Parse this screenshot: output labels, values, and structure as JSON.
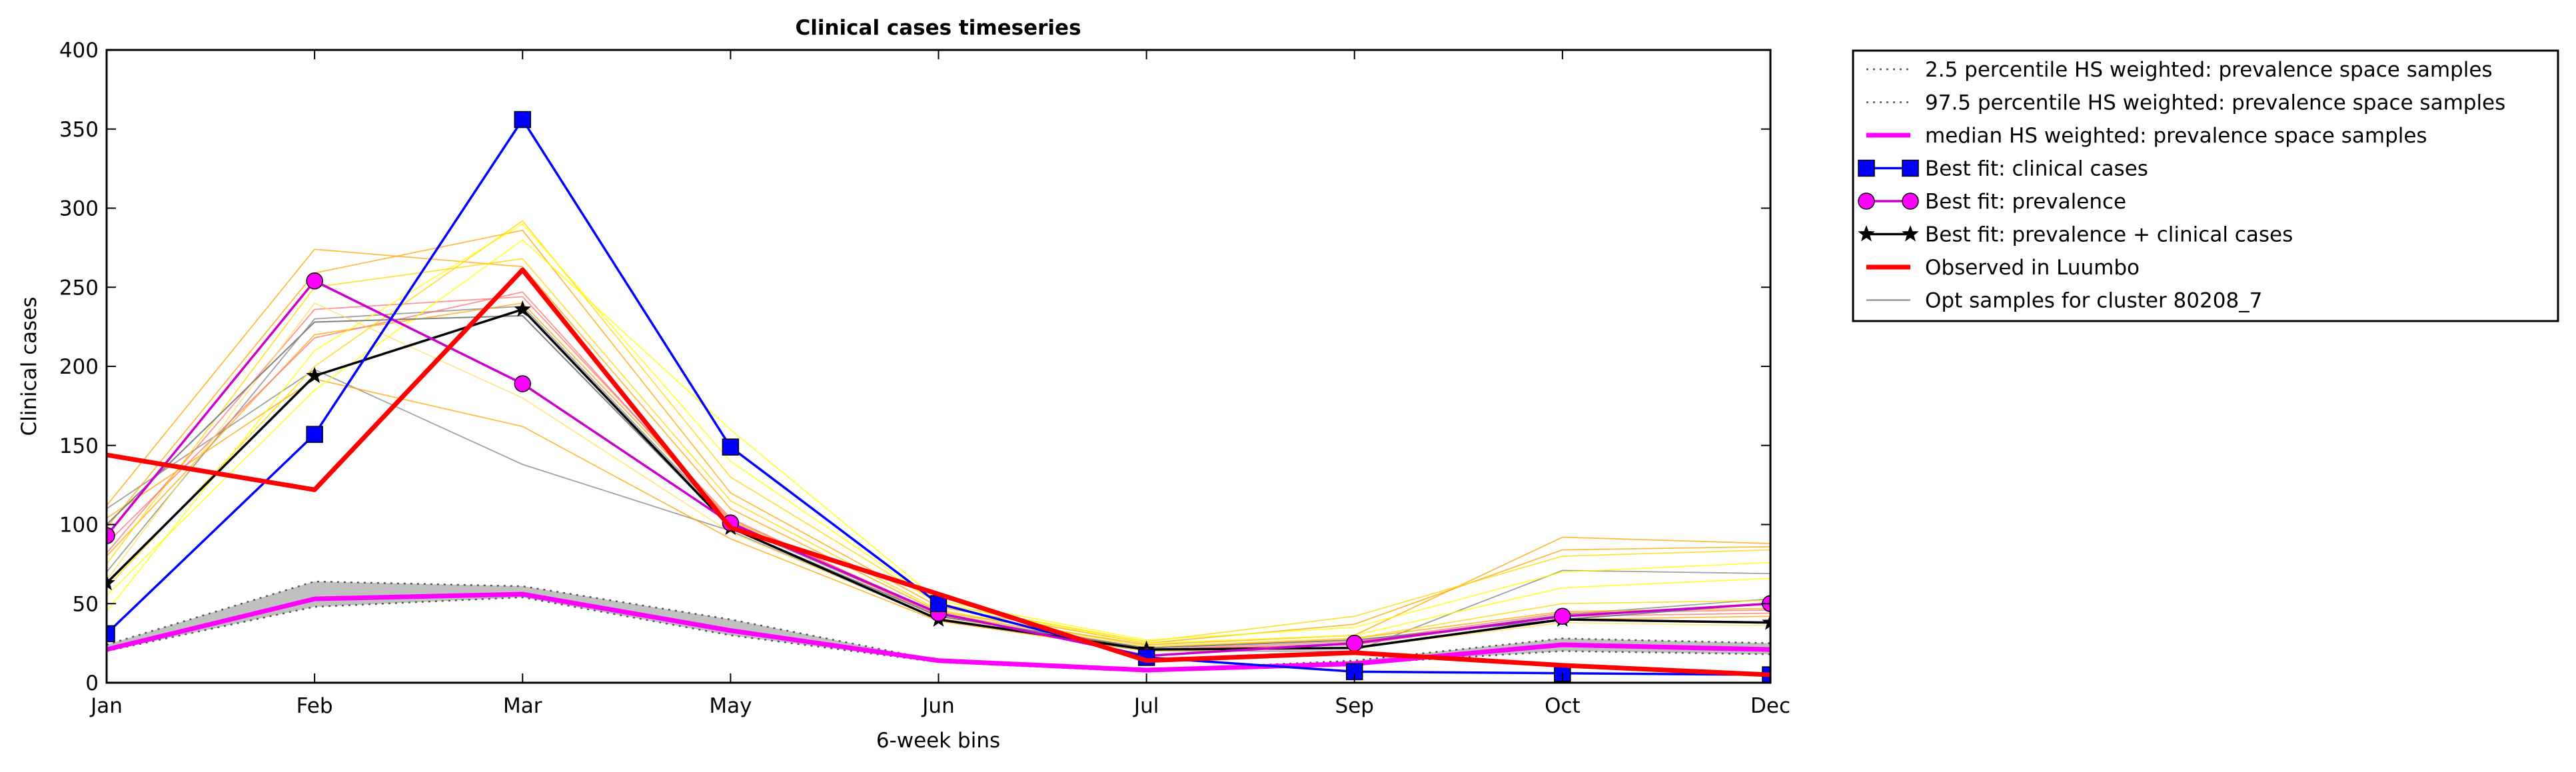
{
  "chart_data": {
    "type": "line",
    "title": "Clinical cases timeseries",
    "xlabel": "6-week bins",
    "ylabel": "Clinical cases",
    "categories": [
      "Jan",
      "Feb",
      "Mar",
      "May",
      "Jun",
      "Jul",
      "Sep",
      "Oct",
      "Dec"
    ],
    "ylim": [
      0,
      400
    ],
    "yticks": [
      0,
      50,
      100,
      150,
      200,
      250,
      300,
      350,
      400
    ],
    "grid": false,
    "legend_position": "outside-right",
    "series": [
      {
        "name": "2.5 percentile HS weighted: prevalence space samples",
        "style": "dotted",
        "color": "#555555",
        "values": [
          20,
          48,
          54,
          30,
          13,
          7,
          12,
          20,
          18
        ]
      },
      {
        "name": "97.5 percentile HS weighted: prevalence space samples",
        "style": "dotted",
        "color": "#555555",
        "values": [
          24,
          64,
          61,
          40,
          14,
          8,
          14,
          28,
          25
        ]
      },
      {
        "name": "median HS weighted: prevalence space samples",
        "style": "solid",
        "color": "#ff00ff",
        "values": [
          21,
          53,
          56,
          33,
          14,
          8,
          12,
          24,
          21
        ]
      },
      {
        "name": "Best fit: clinical cases",
        "style": "solid",
        "marker": "square",
        "color": "#0000ff",
        "values": [
          31,
          157,
          356,
          149,
          50,
          16,
          7,
          6,
          5
        ]
      },
      {
        "name": "Best fit: prevalence",
        "style": "solid",
        "marker": "circle",
        "color": "#cc00cc",
        "marker_fill": "#ff00ff",
        "values": [
          93,
          254,
          189,
          101,
          44,
          17,
          25,
          42,
          50
        ]
      },
      {
        "name": "Best fit: prevalence + clinical cases",
        "style": "solid",
        "marker": "star",
        "color": "#000000",
        "values": [
          63,
          194,
          236,
          98,
          40,
          21,
          22,
          40,
          38
        ]
      },
      {
        "name": "Observed in Luumbo",
        "style": "solid",
        "color": "#ff0000",
        "values": [
          144,
          122,
          261,
          98,
          56,
          14,
          19,
          11,
          5
        ]
      },
      {
        "name": "Opt samples for cluster 80208_7",
        "style": "solid",
        "color": "#808080",
        "values": [
          100,
          228,
          232,
          98,
          42,
          22,
          27,
          40,
          50
        ]
      }
    ],
    "extra_samples": [
      {
        "color": "#808080",
        "values": [
          70,
          230,
          238,
          100,
          43,
          20,
          25,
          43,
          53
        ]
      },
      {
        "color": "#808080",
        "values": [
          110,
          198,
          138,
          96,
          40,
          20,
          20,
          71,
          69
        ]
      },
      {
        "color": "#ffa500",
        "values": [
          112,
          274,
          263,
          110,
          45,
          24,
          30,
          92,
          88
        ]
      },
      {
        "color": "#ffa500",
        "values": [
          98,
          259,
          286,
          120,
          48,
          25,
          37,
          84,
          86
        ]
      },
      {
        "color": "#ffa500",
        "values": [
          80,
          220,
          240,
          103,
          44,
          22,
          28,
          45,
          47
        ]
      },
      {
        "color": "#ffa500",
        "values": [
          104,
          192,
          162,
          91,
          39,
          20,
          22,
          40,
          42
        ]
      },
      {
        "color": "#ff7070",
        "values": [
          88,
          218,
          247,
          102,
          42,
          21,
          24,
          42,
          44
        ]
      },
      {
        "color": "#ff7070",
        "values": [
          82,
          236,
          244,
          104,
          43,
          21,
          26,
          44,
          46
        ]
      },
      {
        "color": "#ffd700",
        "values": [
          60,
          200,
          292,
          130,
          50,
          26,
          42,
          80,
          84
        ]
      },
      {
        "color": "#ffff00",
        "values": [
          55,
          185,
          280,
          160,
          52,
          27,
          35,
          70,
          76
        ]
      },
      {
        "color": "#ffff00",
        "values": [
          45,
          210,
          290,
          140,
          50,
          25,
          30,
          60,
          66
        ]
      },
      {
        "color": "#ffd700",
        "values": [
          75,
          250,
          268,
          115,
          46,
          23,
          28,
          50,
          52
        ]
      },
      {
        "color": "#ffe060",
        "values": [
          65,
          240,
          180,
          95,
          41,
          20,
          22,
          38,
          36
        ]
      }
    ],
    "band": {
      "lower_series": 0,
      "upper_series": 1,
      "fill": "#c0c0c0"
    }
  }
}
